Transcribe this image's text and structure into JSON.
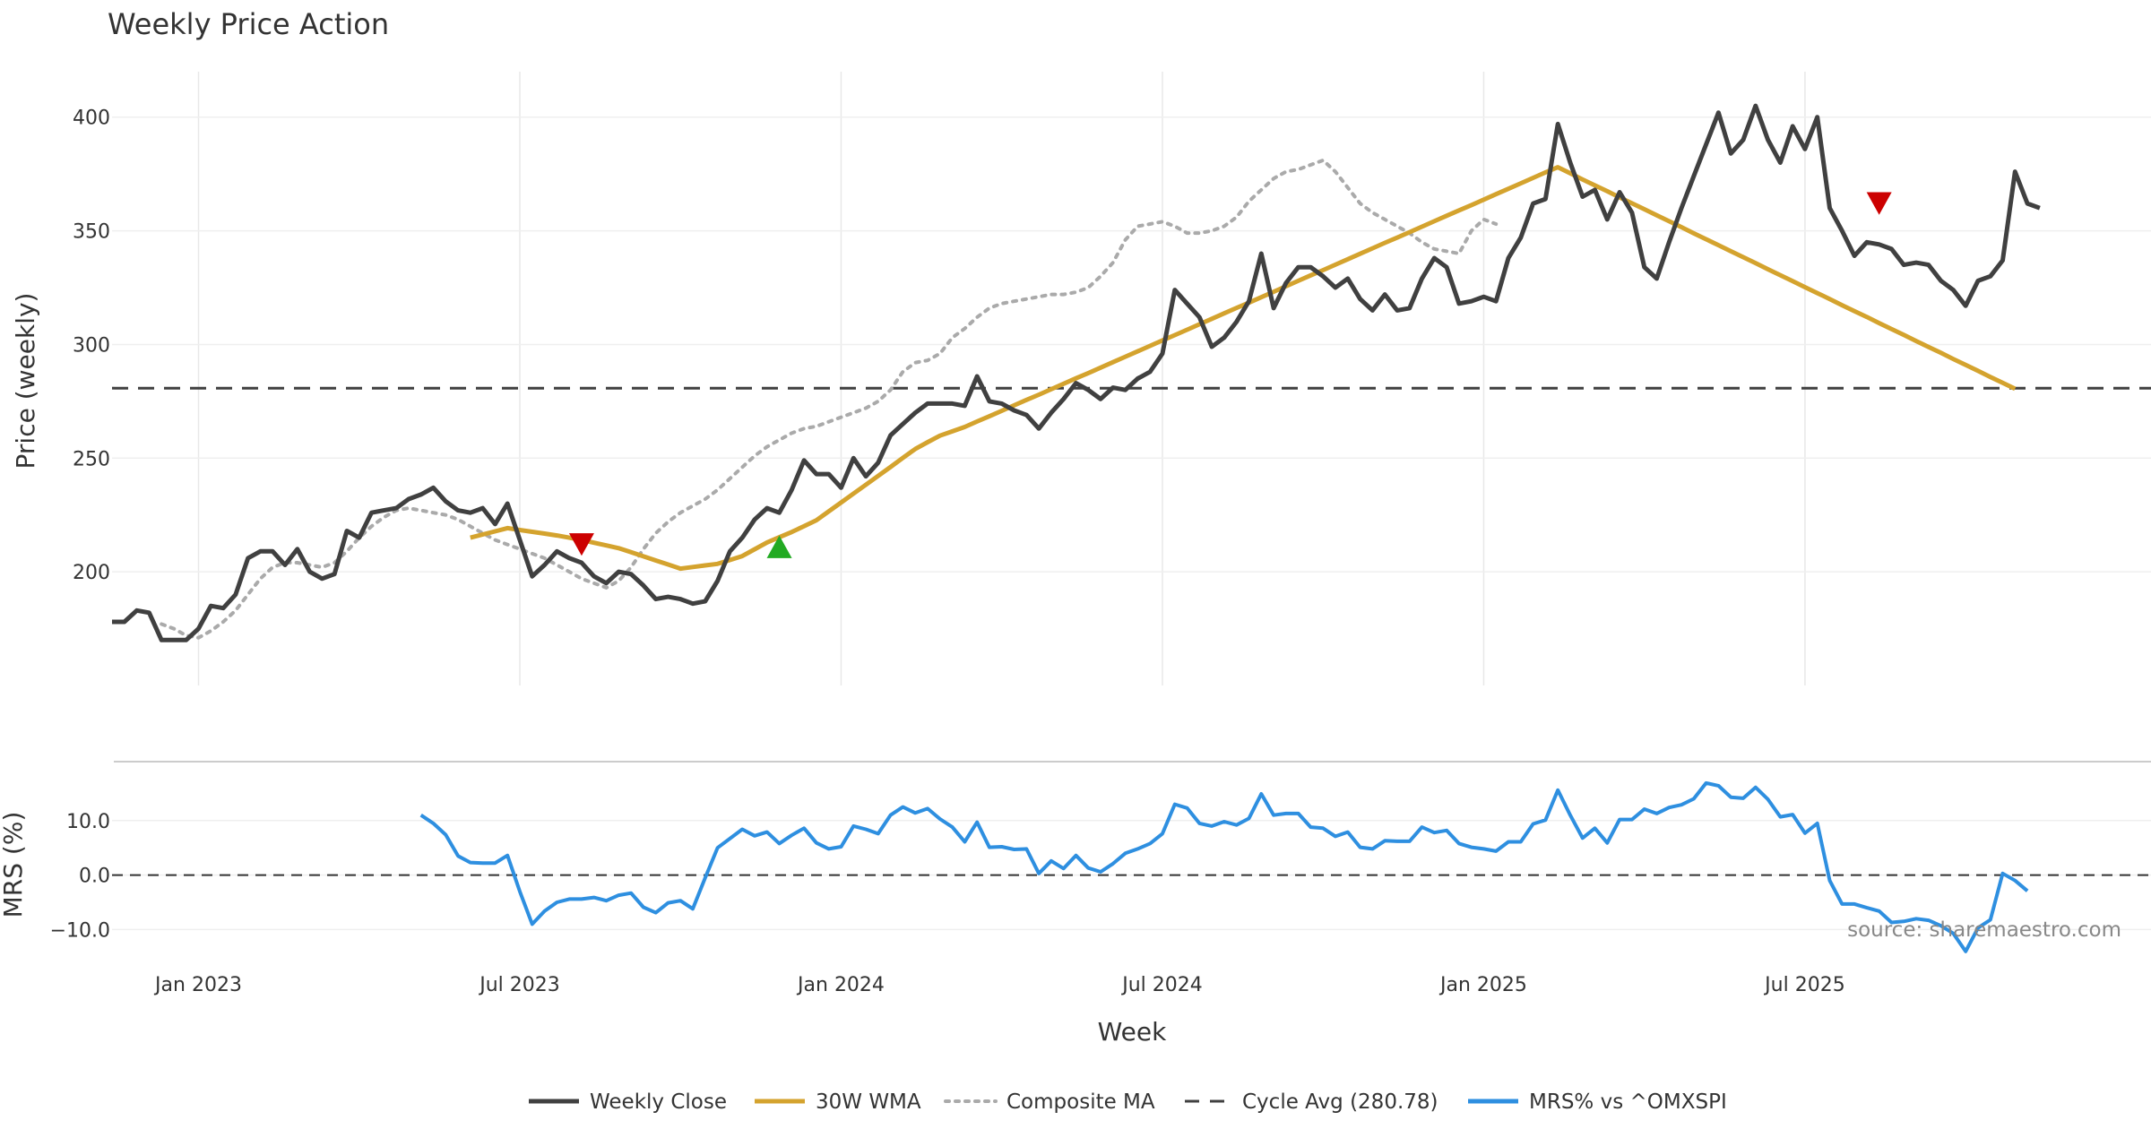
{
  "chart_data": [
    {
      "type": "line",
      "title": "Weekly Price Action",
      "xlabel": "",
      "ylabel": "Price (weekly)",
      "ylim": [
        150,
        420
      ],
      "yticks": [
        200,
        250,
        300,
        350,
        400
      ],
      "x_ticks": [
        "Jan 2023",
        "Jul 2023",
        "Jan 2024",
        "Jul 2024",
        "Jan 2025",
        "Jul 2025"
      ],
      "weeks_total": 165,
      "tick_weeks": [
        7,
        33,
        59,
        85,
        111,
        137
      ],
      "reference_line": {
        "name": "Cycle Avg (280.78)",
        "value": 280.78
      },
      "series": [
        {
          "name": "Weekly Close",
          "color": "#404040",
          "start_week": 0,
          "values": [
            178,
            178,
            183,
            182,
            170,
            170,
            170,
            175,
            185,
            184,
            190,
            206,
            209,
            209,
            203,
            210,
            200,
            197,
            199,
            218,
            215,
            226,
            227,
            228,
            232,
            234,
            237,
            231,
            227,
            226,
            228,
            221,
            230,
            214,
            198,
            203,
            209,
            206,
            204,
            198,
            195,
            200,
            199,
            194,
            188,
            189,
            188,
            186,
            187,
            196,
            209,
            215,
            223,
            228,
            226,
            236,
            249,
            243,
            243,
            237,
            250,
            242,
            248,
            260,
            265,
            270,
            274,
            274,
            274,
            273,
            286,
            275,
            274,
            271,
            269,
            263,
            270,
            276,
            283,
            280,
            276,
            281,
            280,
            285,
            288,
            296,
            324,
            318,
            312,
            299,
            303,
            310,
            319,
            340,
            316,
            327,
            334,
            334,
            330,
            325,
            329,
            320,
            315,
            322,
            315,
            316,
            329,
            338,
            334,
            318,
            319,
            321,
            319,
            338,
            347,
            362,
            364,
            397,
            380,
            365,
            368,
            355,
            367,
            358,
            334,
            329,
            345,
            360,
            374,
            388,
            402,
            384,
            390,
            405,
            390,
            380,
            396,
            386,
            400,
            360,
            350,
            339,
            345,
            344,
            342,
            335,
            336,
            335,
            328,
            324,
            317,
            328,
            330,
            337,
            376,
            362,
            360
          ]
        },
        {
          "name": "30W WMA",
          "color": "#D4A32E",
          "start_week": 29,
          "values": [
            215,
            216.4,
            217.8,
            219.2,
            218.4,
            217.6,
            216.8,
            216,
            215,
            214,
            212.8,
            211.6,
            210.4,
            208.6,
            206.8,
            205,
            203.2,
            201.4,
            202.1,
            202.8,
            203.5,
            205.2,
            206.9,
            209.9,
            212.9,
            215.2,
            217.5,
            220.1,
            222.7,
            226.6,
            230.5,
            234.4,
            238.3,
            242.2,
            246.1,
            250.1,
            254,
            257,
            259.9,
            261.8,
            263.7,
            266.1,
            268.4,
            270.8,
            273.2,
            275.6,
            277.9,
            280.3,
            282.7,
            285.1,
            287.4,
            289.8,
            292.2,
            294.6,
            297,
            299.4,
            301.8,
            304.1,
            306.5,
            308.9,
            311.3,
            313.7,
            316.1,
            318.4,
            320.8,
            323.2,
            325.6,
            328,
            330.4,
            332.7,
            335.1,
            337.5,
            339.9,
            342.3,
            344.7,
            347,
            349.4,
            351.8,
            354.2,
            356.6,
            359,
            361.3,
            363.7,
            366.1,
            368.5,
            370.9,
            373.3,
            375.7,
            378,
            375.3,
            372.6,
            370,
            367.4,
            364.7,
            362.1,
            359.5,
            356.8,
            354.2,
            351.6,
            348.9,
            346.3,
            343.7,
            341,
            338.4,
            335.8,
            333.1,
            330.5,
            327.9,
            325.2,
            322.6,
            320,
            317.3,
            314.7,
            312.1,
            309.4,
            306.8,
            304.2,
            301.5,
            298.9,
            296.3,
            293.6,
            291,
            288.4,
            285.7,
            283.1,
            280.5
          ]
        },
        {
          "name": "Composite MA",
          "color": "#AAAAAA",
          "start_week": 4,
          "values": [
            177,
            175,
            172,
            171,
            174,
            178,
            183,
            190,
            197,
            202,
            204,
            204,
            203,
            202,
            204,
            209,
            215,
            220,
            224,
            227,
            228,
            227,
            226,
            225,
            223,
            220,
            217,
            214,
            212,
            210,
            208,
            206,
            203,
            200,
            197,
            195,
            193,
            196,
            202,
            210,
            217,
            222,
            226,
            229,
            232,
            236,
            241,
            246,
            251,
            255,
            258,
            261,
            263,
            264,
            266,
            268,
            270,
            272,
            275,
            280,
            288,
            292,
            293,
            296,
            303,
            307,
            312,
            316,
            318,
            319,
            320,
            321,
            322,
            322,
            323,
            325,
            330,
            336,
            346,
            352,
            353,
            354,
            352,
            349,
            349,
            350,
            352,
            356,
            363,
            368,
            373,
            376,
            377,
            379,
            381,
            376,
            369,
            362,
            358,
            355,
            352,
            349,
            345,
            342,
            341,
            340,
            350,
            355,
            353
          ]
        }
      ],
      "markers": [
        {
          "name": "Sell signal",
          "symbol": "triangle-down",
          "color": "#CC0000",
          "week": 38,
          "value": 212
        },
        {
          "name": "Buy signal",
          "symbol": "triangle-up",
          "color": "#22AA22",
          "week": 54,
          "value": 211
        },
        {
          "name": "Sell signal",
          "symbol": "triangle-down",
          "color": "#CC0000",
          "week": 143,
          "value": 362
        }
      ]
    },
    {
      "type": "line",
      "title": "",
      "xlabel": "Week",
      "ylabel": "MRS (%)",
      "ylim": [
        -17,
        20
      ],
      "yticks": [
        10.0,
        0.0,
        -10.0
      ],
      "ytick_labels": [
        "10.0",
        "0.0",
        "−10.0"
      ],
      "x_ticks": [
        "Jan 2023",
        "Jul 2023",
        "Jan 2024",
        "Jul 2024",
        "Jan 2025",
        "Jul 2025"
      ],
      "reference_line": {
        "name": "zero",
        "value": 0
      },
      "series": [
        {
          "name": "MRS% vs ^OMXSPI",
          "color": "#2E8FE0",
          "start_week": 25,
          "values": [
            11,
            9.5,
            7.4,
            3.5,
            2.3,
            2.2,
            2.2,
            3.6,
            -3,
            -9,
            -6.6,
            -5,
            -4.4,
            -4.4,
            -4.1,
            -4.7,
            -3.7,
            -3.3,
            -5.9,
            -6.9,
            -5.1,
            -4.7,
            -6.2,
            -0.5,
            5,
            6.7,
            8.4,
            7.2,
            7.9,
            5.8,
            7.3,
            8.6,
            5.9,
            4.8,
            5.2,
            9,
            8.4,
            7.6,
            11,
            12.5,
            11.4,
            12.2,
            10.3,
            8.8,
            6.1,
            9.7,
            5.1,
            5.2,
            4.7,
            4.8,
            0.3,
            2.6,
            1.2,
            3.6,
            1.3,
            0.6,
            2.1,
            4,
            4.8,
            5.8,
            7.6,
            13,
            12.3,
            9.5,
            9,
            9.8,
            9.2,
            10.4,
            14.9,
            11,
            11.3,
            11.3,
            8.8,
            8.6,
            7.1,
            7.9,
            5.1,
            4.8,
            6.3,
            6.2,
            6.2,
            8.8,
            7.8,
            8.2,
            5.8,
            5.1,
            4.8,
            4.4,
            6.1,
            6.1,
            9.4,
            10.1,
            15.6,
            11,
            6.8,
            8.6,
            5.9,
            10.2,
            10.2,
            12.1,
            11.3,
            12.4,
            12.9,
            14,
            16.9,
            16.4,
            14.3,
            14.1,
            16.1,
            13.9,
            10.7,
            11.1,
            7.7,
            9.5,
            -1,
            -5.3,
            -5.3,
            -6,
            -6.6,
            -8.7,
            -8.5,
            -8,
            -8.3,
            -9.3,
            -10.7,
            -14,
            -9.7,
            -8.2,
            0.3,
            -1,
            -2.9
          ]
        }
      ]
    }
  ],
  "legend": {
    "placement": "bottom-center",
    "entries": [
      {
        "label": "Weekly Close",
        "style": "solid",
        "color": "#404040"
      },
      {
        "label": "30W WMA",
        "style": "solid",
        "color": "#D4A32E"
      },
      {
        "label": "Composite MA",
        "style": "dotted",
        "color": "#AAAAAA"
      },
      {
        "label": "Cycle Avg (280.78)",
        "style": "dashed",
        "color": "#404040"
      },
      {
        "label": "MRS% vs ^OMXSPI",
        "style": "solid",
        "color": "#2E8FE0"
      }
    ]
  },
  "source_text": "source: sharemaestro.com"
}
